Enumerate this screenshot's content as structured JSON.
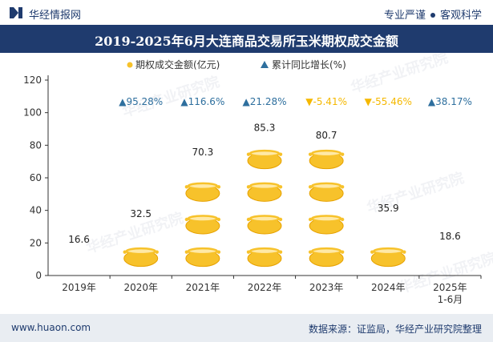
{
  "header": {
    "brand": "华经情报网",
    "tagline_left": "专业严谨",
    "tagline_right": "客观科学"
  },
  "title": "2019-2025年6月大连商品交易所玉米期权成交金额",
  "footer": {
    "website": "www.huaon.com",
    "source": "数据来源：证监局，华经产业研究院整理"
  },
  "watermark": "华经产业研究院",
  "colors": {
    "brand_navy": "#1f3b6e",
    "pot_fill": "#f7c22b",
    "pot_edge": "#e6a100",
    "up_triangle": "#2e6f9e",
    "down_triangle": "#f5b800",
    "axis": "#333333",
    "footer_bg": "#e9edf2"
  },
  "chart_data": {
    "type": "bar",
    "bar_style": "stacked money-bag pictograms",
    "categories": [
      "2019年",
      "2020年",
      "2021年",
      "2022年",
      "2023年",
      "2024年",
      "2025年\n1-6月"
    ],
    "series": [
      {
        "name": "期权成交金额(亿元)",
        "values": [
          16.6,
          32.5,
          70.3,
          85.3,
          80.7,
          35.9,
          18.6
        ],
        "data_labels": [
          "16.6",
          "32.5",
          "70.3",
          "85.3",
          "80.7",
          "35.9",
          "18.6"
        ]
      },
      {
        "name": "累计同比增长(%)",
        "values": [
          null,
          95.28,
          116.6,
          21.28,
          -5.41,
          -55.46,
          38.17
        ],
        "data_labels": [
          "",
          "▲95.28%",
          "▲116.6%",
          "▲21.28%",
          "▼-5.41%",
          "▼-55.46%",
          "▲38.17%"
        ]
      }
    ],
    "legend": {
      "position": "top-center",
      "items": [
        {
          "label": "期权成交金额(亿元)",
          "marker": "money-bag-icon"
        },
        {
          "label": "累计同比增长(%)",
          "marker": "up-triangle-icon"
        }
      ]
    },
    "yaxis": {
      "ylim": [
        0,
        120
      ],
      "ticks": [
        0,
        20,
        40,
        60,
        80,
        100,
        120
      ],
      "tick_labels": [
        "0",
        "20",
        "40",
        "60",
        "80",
        "100",
        "120"
      ]
    },
    "grid": false
  }
}
